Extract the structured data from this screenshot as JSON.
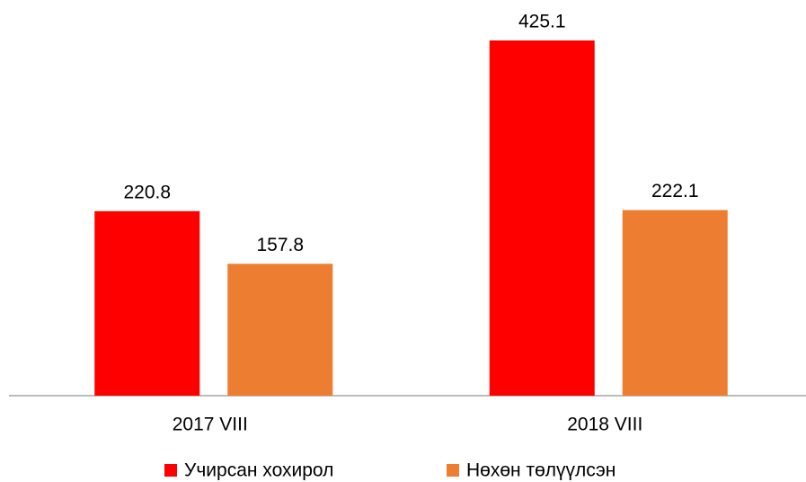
{
  "chart_data": {
    "type": "bar",
    "categories": [
      "2017 VIII",
      "2018 VIII"
    ],
    "series": [
      {
        "name": "Учирсан хохирол",
        "color": "#ff0000",
        "values": [
          220.8,
          425.1
        ]
      },
      {
        "name": "Нөхөн төлүүлсэн",
        "color": "#ed7d31",
        "values": [
          157.8,
          222.1
        ]
      }
    ],
    "legend": "bottom"
  }
}
